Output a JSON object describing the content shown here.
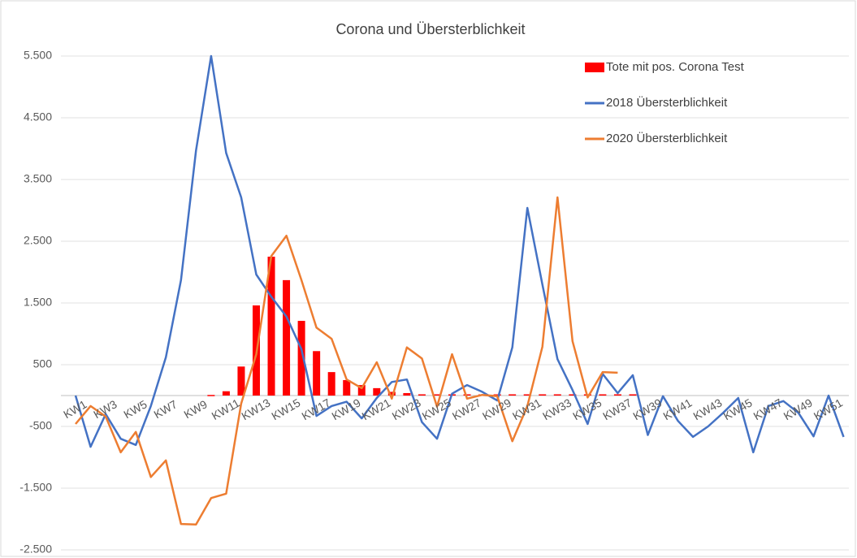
{
  "chart_data": {
    "type": "bar-line",
    "title": "Corona und Übersterblichkeit",
    "categories": [
      "KW1",
      null,
      "KW3",
      null,
      "KW5",
      null,
      "KW7",
      null,
      "KW9",
      null,
      "KW11",
      null,
      "KW13",
      null,
      "KW15",
      null,
      "KW17",
      null,
      "KW19",
      null,
      "KW21",
      null,
      "KW23",
      null,
      "KW25",
      null,
      "KW27",
      null,
      "KW29",
      null,
      "KW31",
      null,
      "KW33",
      null,
      "KW35",
      null,
      "KW37",
      null,
      "KW39",
      null,
      "KW41",
      null,
      "KW43",
      null,
      "KW45",
      null,
      "KW47",
      null,
      "KW49",
      null,
      "KW51",
      null
    ],
    "series": [
      {
        "name": "Tote mit pos. Corona Test",
        "type": "bar",
        "color": "#ff0000",
        "values": [
          null,
          null,
          null,
          null,
          null,
          null,
          null,
          null,
          null,
          10,
          70,
          470,
          1460,
          2250,
          1870,
          1210,
          720,
          380,
          250,
          170,
          120,
          60,
          40,
          20,
          20,
          20,
          20,
          20,
          20,
          20,
          20,
          20,
          20,
          20,
          20,
          20,
          20,
          20,
          null,
          null,
          null,
          null,
          null,
          null,
          null,
          null,
          null,
          null,
          null,
          null,
          null,
          null
        ]
      },
      {
        "name": "2018 Übersterblichkeit",
        "type": "line",
        "color": "#4472c4",
        "values": [
          0,
          -830,
          -300,
          -700,
          -800,
          -170,
          620,
          1870,
          3970,
          5500,
          3930,
          3210,
          1960,
          1600,
          1280,
          750,
          -330,
          -170,
          -100,
          -370,
          -40,
          220,
          260,
          -430,
          -700,
          30,
          170,
          60,
          -80,
          780,
          3040,
          1800,
          590,
          90,
          -460,
          350,
          40,
          330,
          -640,
          -10,
          -410,
          -670,
          -500,
          -280,
          -40,
          -920,
          -170,
          -90,
          -280,
          -660,
          0,
          -670
        ]
      },
      {
        "name": "2020 Übersterblichkeit",
        "type": "line",
        "color": "#ed7d31",
        "values": [
          -460,
          -170,
          -340,
          -920,
          -590,
          -1320,
          -1050,
          -2080,
          -2090,
          -1660,
          -1590,
          -130,
          670,
          2260,
          2590,
          1870,
          1100,
          920,
          260,
          120,
          540,
          -50,
          780,
          600,
          -180,
          670,
          -50,
          10,
          -10,
          -740,
          -170,
          790,
          3210,
          880,
          -30,
          380,
          370,
          null,
          null,
          null,
          null,
          null,
          null,
          null,
          null,
          null,
          null,
          null,
          null,
          null,
          null,
          null
        ]
      }
    ],
    "ylim": [
      -2500,
      5500
    ],
    "yticks": [
      {
        "value": -2500,
        "label": "-2.500"
      },
      {
        "value": -1500,
        "label": "-1.500"
      },
      {
        "value": -500,
        "label": "-500"
      },
      500,
      {
        "value": 1500,
        "label": "1.500"
      },
      {
        "value": 2500,
        "label": "2.500"
      },
      {
        "value": 3500,
        "label": "3.500"
      },
      {
        "value": 4500,
        "label": "4.500"
      },
      {
        "value": 5500,
        "label": "5.500"
      }
    ],
    "grid": true,
    "legend": "top-right"
  }
}
